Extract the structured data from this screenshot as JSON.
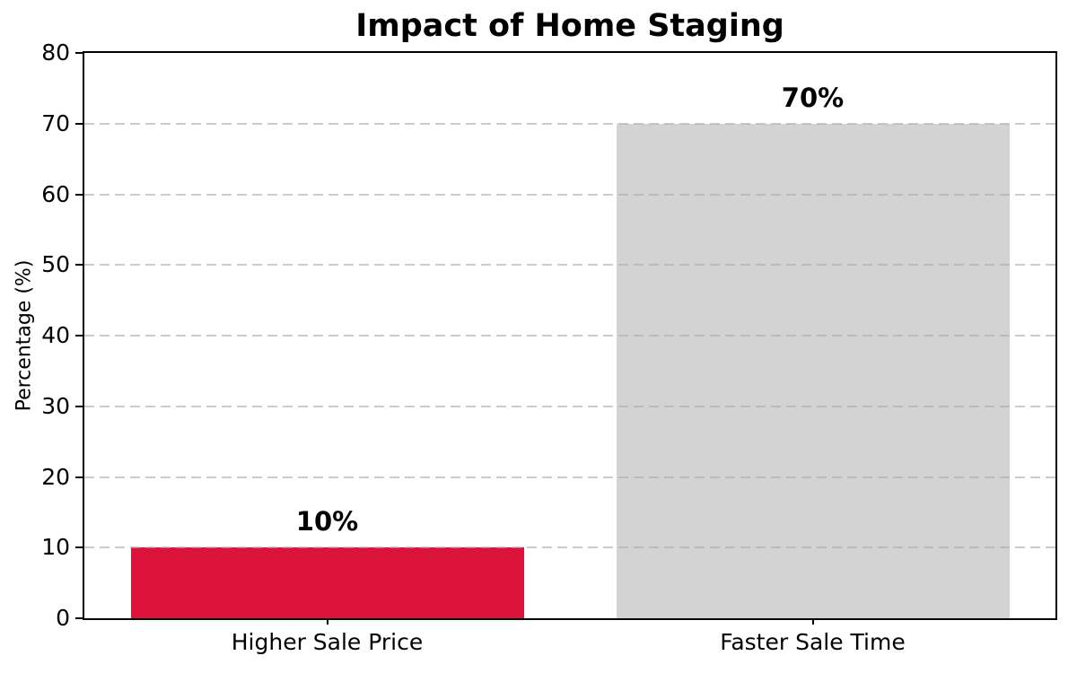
{
  "chart_data": {
    "type": "bar",
    "title": "Impact of Home Staging",
    "xlabel": "",
    "ylabel": "Percentage (%)",
    "categories": [
      "Higher Sale Price",
      "Faster Sale Time"
    ],
    "values": [
      10,
      70
    ],
    "value_labels": [
      "10%",
      "70%"
    ],
    "bar_colors": [
      "#DC143C",
      "#D3D3D3"
    ],
    "ylim": [
      0,
      80
    ],
    "yticks": [
      0,
      10,
      20,
      30,
      40,
      50,
      60,
      70,
      80
    ],
    "grid": {
      "axis": "y",
      "style": "dashed",
      "color": "#cfcfcf",
      "on": true
    },
    "legend": "none",
    "background": "#ffffff",
    "spine_color": "#000000"
  }
}
